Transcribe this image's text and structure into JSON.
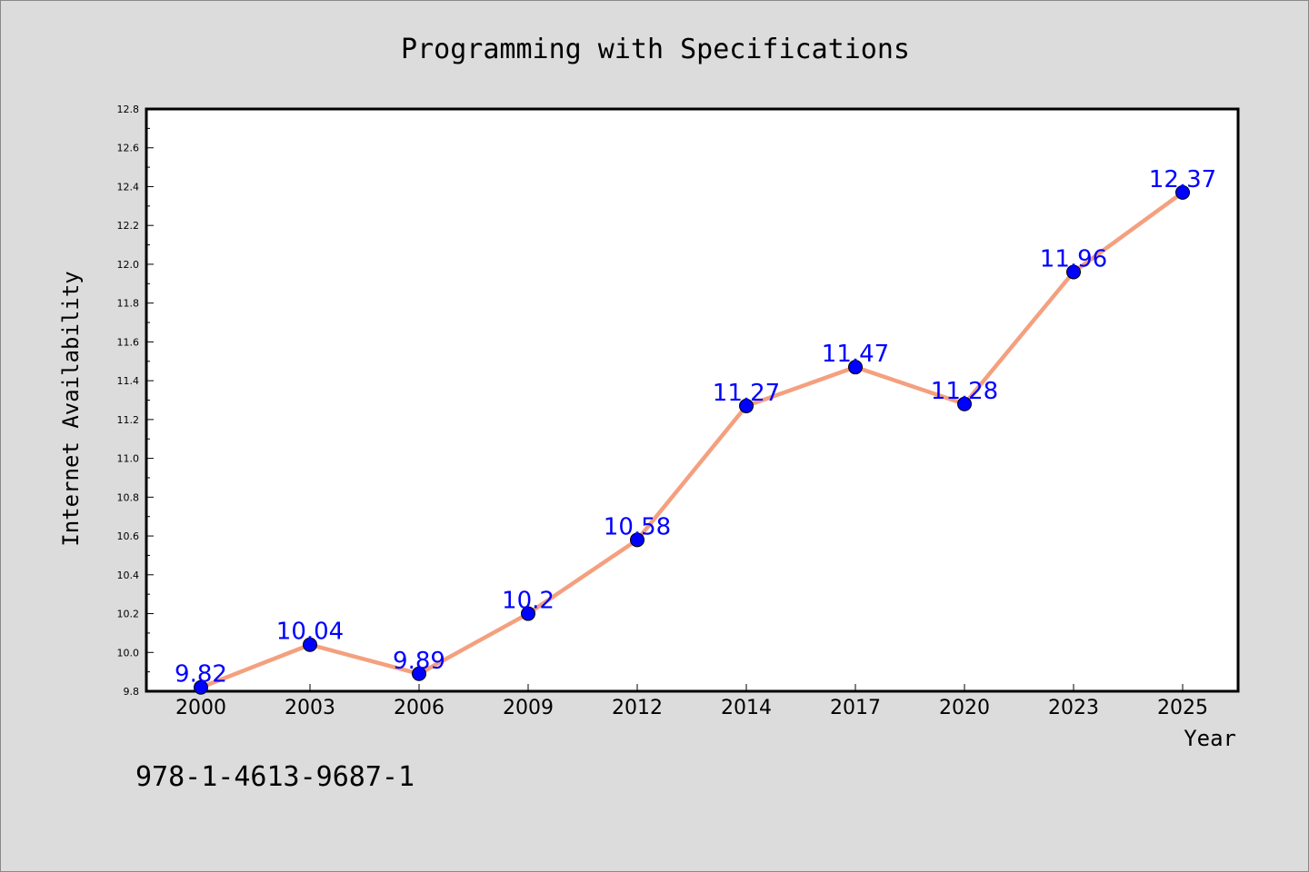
{
  "chart_data": {
    "type": "line",
    "title": "Programming with Specifications",
    "xlabel": "Year",
    "ylabel": "Internet Availability",
    "categories": [
      "2000",
      "2003",
      "2006",
      "2009",
      "2012",
      "2014",
      "2017",
      "2020",
      "2023",
      "2025"
    ],
    "series": [
      {
        "values": [
          9.82,
          10.04,
          9.89,
          10.2,
          10.58,
          11.27,
          11.47,
          11.28,
          11.96,
          12.37
        ],
        "data_labels": [
          "9.82",
          "10.04",
          "9.89",
          "10.2",
          "10.58",
          "11.27",
          "11.47",
          "11.28",
          "11.96",
          "12.37"
        ],
        "line_color": "#f4a07f",
        "marker_color": "#0000ff"
      }
    ],
    "ylim": [
      9.8,
      12.8
    ],
    "yticks": [
      "9.8",
      "10.0",
      "10.2",
      "10.4",
      "10.6",
      "10.8",
      "11.0",
      "11.2",
      "11.4",
      "11.6",
      "11.8",
      "12.0",
      "12.2",
      "12.4",
      "12.6",
      "12.8"
    ],
    "grid": false,
    "legend": "none",
    "plot_background": "#ffffff",
    "figure_background": "#dcdcdc"
  },
  "footnote": "978-1-4613-9687-1"
}
